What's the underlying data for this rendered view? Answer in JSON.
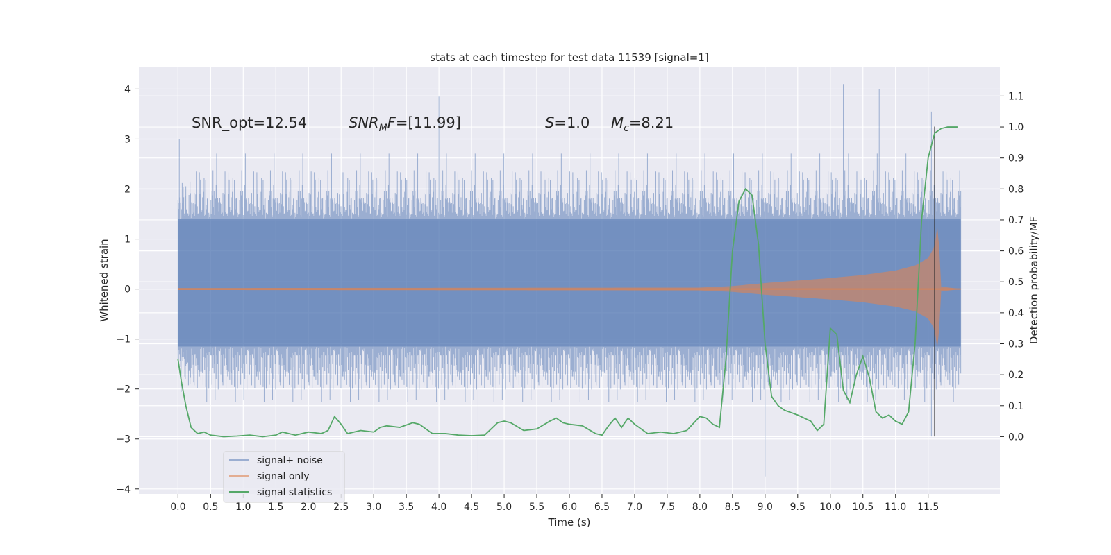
{
  "chart_data": {
    "type": "line",
    "title": "stats at each timestep for test data 11539 [signal=1]",
    "xlabel": "Time (s)",
    "ylabel": "Whitened strain",
    "ylabel_right": "Detection probability/MF",
    "xlim": [
      -0.6,
      12.6
    ],
    "ylim": [
      -4.1,
      4.45
    ],
    "ylim_right": [
      -0.185,
      1.195
    ],
    "x_ticks": [
      "0.0",
      "0.5",
      "1.0",
      "1.5",
      "2.0",
      "2.5",
      "3.0",
      "3.5",
      "4.0",
      "4.5",
      "5.0",
      "5.5",
      "6.0",
      "6.5",
      "7.0",
      "7.5",
      "8.0",
      "8.5",
      "9.0",
      "9.5",
      "10.0",
      "10.5",
      "11.0",
      "11.5"
    ],
    "y_ticks": [
      "4",
      "3",
      "2",
      "1",
      "0",
      "−1",
      "−2",
      "−3",
      "−4"
    ],
    "y_ticks_right": [
      "1.1",
      "1.0",
      "0.9",
      "0.8",
      "0.7",
      "0.6",
      "0.5",
      "0.4",
      "0.3",
      "0.2",
      "0.1",
      "0.0"
    ],
    "grid": true,
    "legend_position": "lower-left",
    "annotations": {
      "snr_opt": "SNR_opt=12.54",
      "snr_mf_sym": "SNR",
      "snr_mf_sub": "M",
      "snr_mf_f": "F",
      "snr_mf_val": "=[11.99]",
      "s_sym": "S",
      "s_val": "=1.0",
      "mc_sym": "M",
      "mc_sub": "c",
      "mc_val": "=8.21"
    },
    "series": [
      {
        "name": "signal+ noise",
        "color": "#4c72b0",
        "x_range": [
          0.0,
          12.0
        ],
        "y_range": [
          -3.7,
          4.1
        ],
        "notable_peaks": [
          [
            0.02,
            3.0
          ],
          [
            4.0,
            3.85
          ],
          [
            10.2,
            4.1
          ],
          [
            10.75,
            4.0
          ],
          [
            11.55,
            3.55
          ],
          [
            9.0,
            -3.75
          ],
          [
            4.6,
            -3.65
          ],
          [
            11.55,
            -2.95
          ]
        ]
      },
      {
        "name": "signal only",
        "color": "#dd8452",
        "x": [
          0.0,
          8.0,
          8.5,
          9.0,
          9.5,
          10.0,
          10.5,
          11.0,
          11.3,
          11.5,
          11.6,
          11.65,
          11.7,
          12.0
        ],
        "envelope": [
          0.02,
          0.03,
          0.06,
          0.12,
          0.17,
          0.22,
          0.28,
          0.37,
          0.47,
          0.62,
          0.85,
          1.35,
          0.05,
          0.0
        ]
      },
      {
        "name": "signal statistics",
        "color": "#55a868",
        "x": [
          0.0,
          0.05,
          0.12,
          0.2,
          0.3,
          0.4,
          0.5,
          0.7,
          0.9,
          1.1,
          1.3,
          1.5,
          1.6,
          1.8,
          2.0,
          2.2,
          2.3,
          2.4,
          2.5,
          2.6,
          2.8,
          3.0,
          3.1,
          3.2,
          3.4,
          3.6,
          3.7,
          3.9,
          4.1,
          4.3,
          4.5,
          4.7,
          4.9,
          5.0,
          5.1,
          5.3,
          5.5,
          5.7,
          5.8,
          5.9,
          6.0,
          6.2,
          6.4,
          6.5,
          6.6,
          6.7,
          6.8,
          6.9,
          7.0,
          7.2,
          7.4,
          7.6,
          7.8,
          8.0,
          8.1,
          8.2,
          8.3,
          8.4,
          8.5,
          8.6,
          8.7,
          8.8,
          8.9,
          9.0,
          9.1,
          9.2,
          9.3,
          9.5,
          9.7,
          9.8,
          9.9,
          10.0,
          10.1,
          10.2,
          10.3,
          10.4,
          10.5,
          10.6,
          10.7,
          10.8,
          10.9,
          11.0,
          11.1,
          11.2,
          11.3,
          11.4,
          11.5,
          11.6,
          11.7,
          11.8,
          11.9,
          11.95
        ],
        "y": [
          0.25,
          0.18,
          0.1,
          0.03,
          0.01,
          0.015,
          0.005,
          0.0,
          0.002,
          0.005,
          0.0,
          0.005,
          0.015,
          0.005,
          0.015,
          0.01,
          0.02,
          0.065,
          0.04,
          0.01,
          0.02,
          0.015,
          0.03,
          0.035,
          0.03,
          0.045,
          0.04,
          0.01,
          0.01,
          0.005,
          0.003,
          0.005,
          0.045,
          0.05,
          0.045,
          0.02,
          0.025,
          0.05,
          0.06,
          0.045,
          0.04,
          0.035,
          0.01,
          0.005,
          0.035,
          0.06,
          0.03,
          0.06,
          0.04,
          0.01,
          0.015,
          0.01,
          0.02,
          0.065,
          0.06,
          0.04,
          0.03,
          0.25,
          0.6,
          0.76,
          0.8,
          0.78,
          0.62,
          0.3,
          0.13,
          0.1,
          0.085,
          0.07,
          0.05,
          0.02,
          0.04,
          0.35,
          0.33,
          0.15,
          0.11,
          0.2,
          0.26,
          0.19,
          0.08,
          0.06,
          0.07,
          0.05,
          0.04,
          0.08,
          0.3,
          0.7,
          0.9,
          0.98,
          0.995,
          1.0,
          1.0,
          1.0
        ]
      }
    ],
    "vline_x": 11.6
  }
}
